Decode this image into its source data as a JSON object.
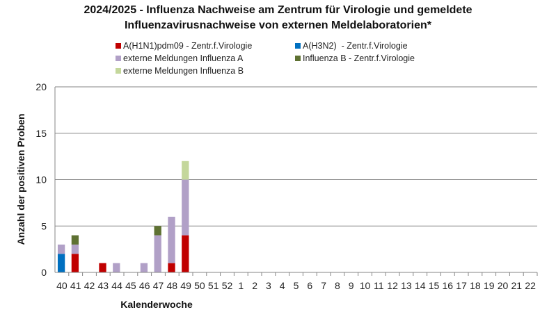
{
  "chart_data": {
    "type": "bar",
    "stacked": true,
    "title_line1": "2024/2025 - Influenza Nachweise am Zentrum für Virologie und gemeldete",
    "title_line2": "Influenzavirusnachweise von externen Meldelaboratorien*",
    "xlabel": "Kalenderwoche",
    "ylabel": "Anzahl der positiven Proben",
    "ylim": [
      0,
      20
    ],
    "yticks": [
      "0",
      "5",
      "10",
      "15",
      "20"
    ],
    "grid": true,
    "legend_position": "top",
    "categories": [
      "40",
      "41",
      "42",
      "43",
      "44",
      "45",
      "46",
      "47",
      "48",
      "49",
      "50",
      "51",
      "52",
      "1",
      "2",
      "3",
      "4",
      "5",
      "6",
      "7",
      "8",
      "9",
      "10",
      "11",
      "12",
      "13",
      "14",
      "15",
      "16",
      "17",
      "18",
      "19",
      "20",
      "21",
      "22"
    ],
    "series": [
      {
        "name": "A(H1N1)pdm09 - Zentr.f.Virologie",
        "color": "#C00000",
        "values": [
          0,
          2,
          0,
          1,
          0,
          0,
          0,
          0,
          1,
          4,
          0,
          0,
          0,
          0,
          0,
          0,
          0,
          0,
          0,
          0,
          0,
          0,
          0,
          0,
          0,
          0,
          0,
          0,
          0,
          0,
          0,
          0,
          0,
          0,
          0
        ]
      },
      {
        "name": "A(H3N2)  - Zentr.f.Virologie",
        "color": "#0070C0",
        "values": [
          2,
          0,
          0,
          0,
          0,
          0,
          0,
          0,
          0,
          0,
          0,
          0,
          0,
          0,
          0,
          0,
          0,
          0,
          0,
          0,
          0,
          0,
          0,
          0,
          0,
          0,
          0,
          0,
          0,
          0,
          0,
          0,
          0,
          0,
          0
        ]
      },
      {
        "name": "externe Meldungen Influenza A",
        "color": "#B1A0C7",
        "values": [
          1,
          1,
          0,
          0,
          1,
          0,
          1,
          4,
          5,
          6,
          0,
          0,
          0,
          0,
          0,
          0,
          0,
          0,
          0,
          0,
          0,
          0,
          0,
          0,
          0,
          0,
          0,
          0,
          0,
          0,
          0,
          0,
          0,
          0,
          0
        ]
      },
      {
        "name": "Influenza B - Zentr.f.Virologie",
        "color": "#5E7132",
        "values": [
          0,
          1,
          0,
          0,
          0,
          0,
          0,
          1,
          0,
          0,
          0,
          0,
          0,
          0,
          0,
          0,
          0,
          0,
          0,
          0,
          0,
          0,
          0,
          0,
          0,
          0,
          0,
          0,
          0,
          0,
          0,
          0,
          0,
          0,
          0
        ]
      },
      {
        "name": "externe Meldungen Influenza B",
        "color": "#C4D79B",
        "values": [
          0,
          0,
          0,
          0,
          0,
          0,
          0,
          0,
          0,
          2,
          0,
          0,
          0,
          0,
          0,
          0,
          0,
          0,
          0,
          0,
          0,
          0,
          0,
          0,
          0,
          0,
          0,
          0,
          0,
          0,
          0,
          0,
          0,
          0,
          0
        ]
      }
    ]
  }
}
